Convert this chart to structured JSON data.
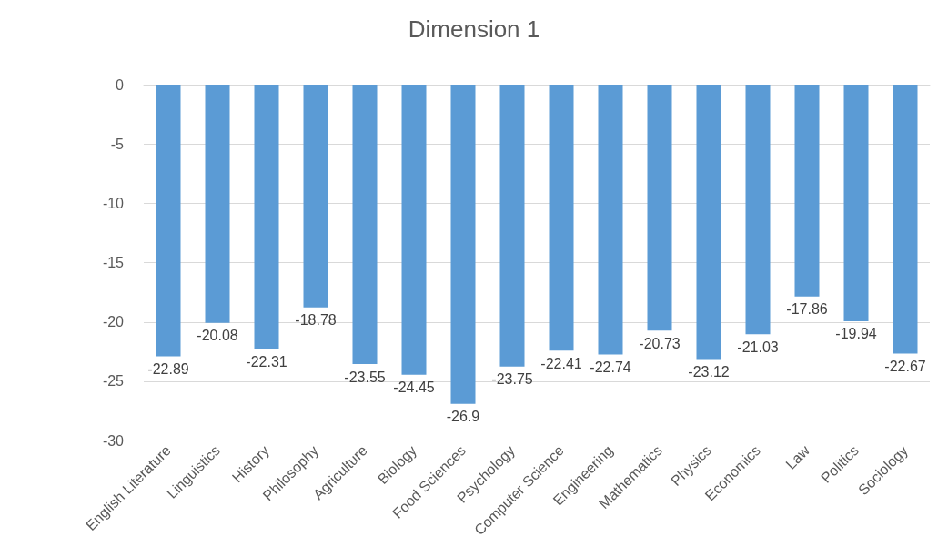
{
  "chart_data": {
    "type": "bar",
    "title": "Dimension 1",
    "categories": [
      "English Literature",
      "Linguistics",
      "History",
      "Philosophy",
      "Agriculture",
      "Biology",
      "Food Sciences",
      "Psychology",
      "Computer Science",
      "Engineering",
      "Mathematics",
      "Physics",
      "Economics",
      "Law",
      "Politics",
      "Sociology"
    ],
    "values": [
      -22.89,
      -20.08,
      -22.31,
      -18.78,
      -23.55,
      -24.45,
      -26.9,
      -23.75,
      -22.41,
      -22.74,
      -20.73,
      -23.12,
      -21.03,
      -17.86,
      -19.94,
      -22.67
    ],
    "color": "#5b9bd5",
    "data_labels": true,
    "ylim": [
      -30,
      0
    ],
    "yticks": [
      0,
      -5,
      -10,
      -15,
      -20,
      -25,
      -30
    ],
    "grid": true
  }
}
